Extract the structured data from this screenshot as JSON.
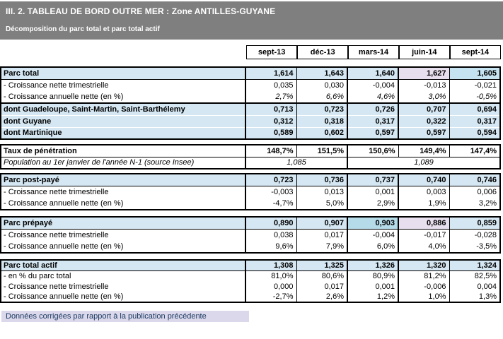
{
  "banner": {
    "title": "III. 2. TABLEAU DE BORD OUTRE MER : Zone ANTILLES-GUYANE",
    "subtitle": "Décomposition du parc total et parc total actif"
  },
  "columns": [
    "sept-13",
    "déc-13",
    "mars-14",
    "juin-14",
    "sept-14"
  ],
  "colors": {
    "banner_bg": "#7F7F7F",
    "row_highlight_blue": "#D5E7F2",
    "cell_corrected_pink": "#E7DFED",
    "cell_highlight_dark_blue": "#B5DAE8",
    "cell_new_quarter_blue": "#C5E3F0",
    "footnote_bg": "#DBD8EB",
    "footnote_text": "#17375E"
  },
  "blocks": [
    {
      "name": "parc_total",
      "rows": [
        {
          "label": "Parc total",
          "values": [
            "1,614",
            "1,643",
            "1,640",
            "1,627",
            "1,605"
          ]
        },
        {
          "label": "- Croissance nette trimestrielle",
          "values": [
            "0,035",
            "0,030",
            "-0,004",
            "-0,013",
            "-0,021"
          ]
        },
        {
          "label": "- Croissance annuelle nette (en %)",
          "values": [
            "2,7%",
            "6,6%",
            "4,6%",
            "3,0%",
            "-0,5%"
          ]
        },
        {
          "label": "dont Guadeloupe, Saint-Martin, Saint-Barthélemy",
          "values": [
            "0,713",
            "0,723",
            "0,726",
            "0,707",
            "0,694"
          ]
        },
        {
          "label": "dont Guyane",
          "values": [
            "0,312",
            "0,318",
            "0,317",
            "0,322",
            "0,317"
          ]
        },
        {
          "label": "dont Martinique",
          "values": [
            "0,589",
            "0,602",
            "0,597",
            "0,597",
            "0,594"
          ]
        }
      ]
    },
    {
      "name": "taux_penetration",
      "rows": [
        {
          "label": "Taux de pénétration",
          "values": [
            "148,7%",
            "151,5%",
            "150,6%",
            "149,4%",
            "147,4%"
          ]
        },
        {
          "label": "Population au 1er janvier de l'année N-1 (source Insee)",
          "values": [
            "1,085",
            "1,089"
          ]
        }
      ]
    },
    {
      "name": "parc_post_paye",
      "rows": [
        {
          "label": "Parc post-payé",
          "values": [
            "0,723",
            "0,736",
            "0,737",
            "0,740",
            "0,746"
          ]
        },
        {
          "label": "- Croissance nette trimestrielle",
          "values": [
            "-0,003",
            "0,013",
            "0,001",
            "0,003",
            "0,006"
          ]
        },
        {
          "label": "- Croissance annuelle nette (en %)",
          "values": [
            "-4,7%",
            "5,0%",
            "2,9%",
            "1,9%",
            "3,2%"
          ]
        }
      ]
    },
    {
      "name": "parc_prepaye",
      "rows": [
        {
          "label": "Parc prépayé",
          "values": [
            "0,890",
            "0,907",
            "0,903",
            "0,886",
            "0,859"
          ]
        },
        {
          "label": "- Croissance nette trimestrielle",
          "values": [
            "0,038",
            "0,017",
            "-0,004",
            "-0,017",
            "-0,028"
          ]
        },
        {
          "label": "- Croissance annuelle nette (en %)",
          "values": [
            "9,6%",
            "7,9%",
            "6,0%",
            "4,0%",
            "-3,5%"
          ]
        }
      ]
    },
    {
      "name": "parc_total_actif",
      "rows": [
        {
          "label": "Parc total actif",
          "values": [
            "1,308",
            "1,325",
            "1,326",
            "1,320",
            "1,324"
          ]
        },
        {
          "label": "- en % du parc total",
          "values": [
            "81,0%",
            "80,6%",
            "80,9%",
            "81,2%",
            "82,5%"
          ]
        },
        {
          "label": "- Croissance nette trimestrielle",
          "values": [
            "0,000",
            "0,017",
            "0,001",
            "-0,006",
            "0,004"
          ]
        },
        {
          "label": "- Croissance annuelle nette (en %)",
          "values": [
            "-2,7%",
            "2,6%",
            "1,2%",
            "1,0%",
            "1,3%"
          ]
        }
      ]
    }
  ],
  "footnote": "Données corrigées par rapport à la publication précédente"
}
